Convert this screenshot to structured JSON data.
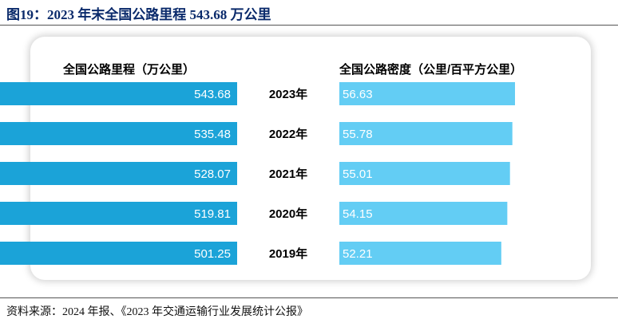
{
  "title": "图19：2023 年末全国公路里程 543.68 万公里",
  "source": "资料来源：2024 年报、《2023  年交通运输行业发展统计公报》",
  "chart_data": {
    "type": "bar",
    "categories": [
      "2023年",
      "2022年",
      "2021年",
      "2020年",
      "2019年"
    ],
    "series": [
      {
        "name": "全国公路里程（万公里）",
        "values": [
          543.68,
          535.48,
          528.07,
          519.81,
          501.25
        ],
        "labels": [
          "543.68",
          "535.48",
          "528.07",
          "519.81",
          "501.25"
        ],
        "color": "#1ba3d8",
        "direction": "left"
      },
      {
        "name": "全国公路密度（公里/百平方公里）",
        "values": [
          56.63,
          55.78,
          55.01,
          54.15,
          52.21
        ],
        "labels": [
          "56.63",
          "55.78",
          "55.01",
          "54.15",
          "52.21"
        ],
        "color": "#63cdf4",
        "direction": "right"
      }
    ]
  }
}
